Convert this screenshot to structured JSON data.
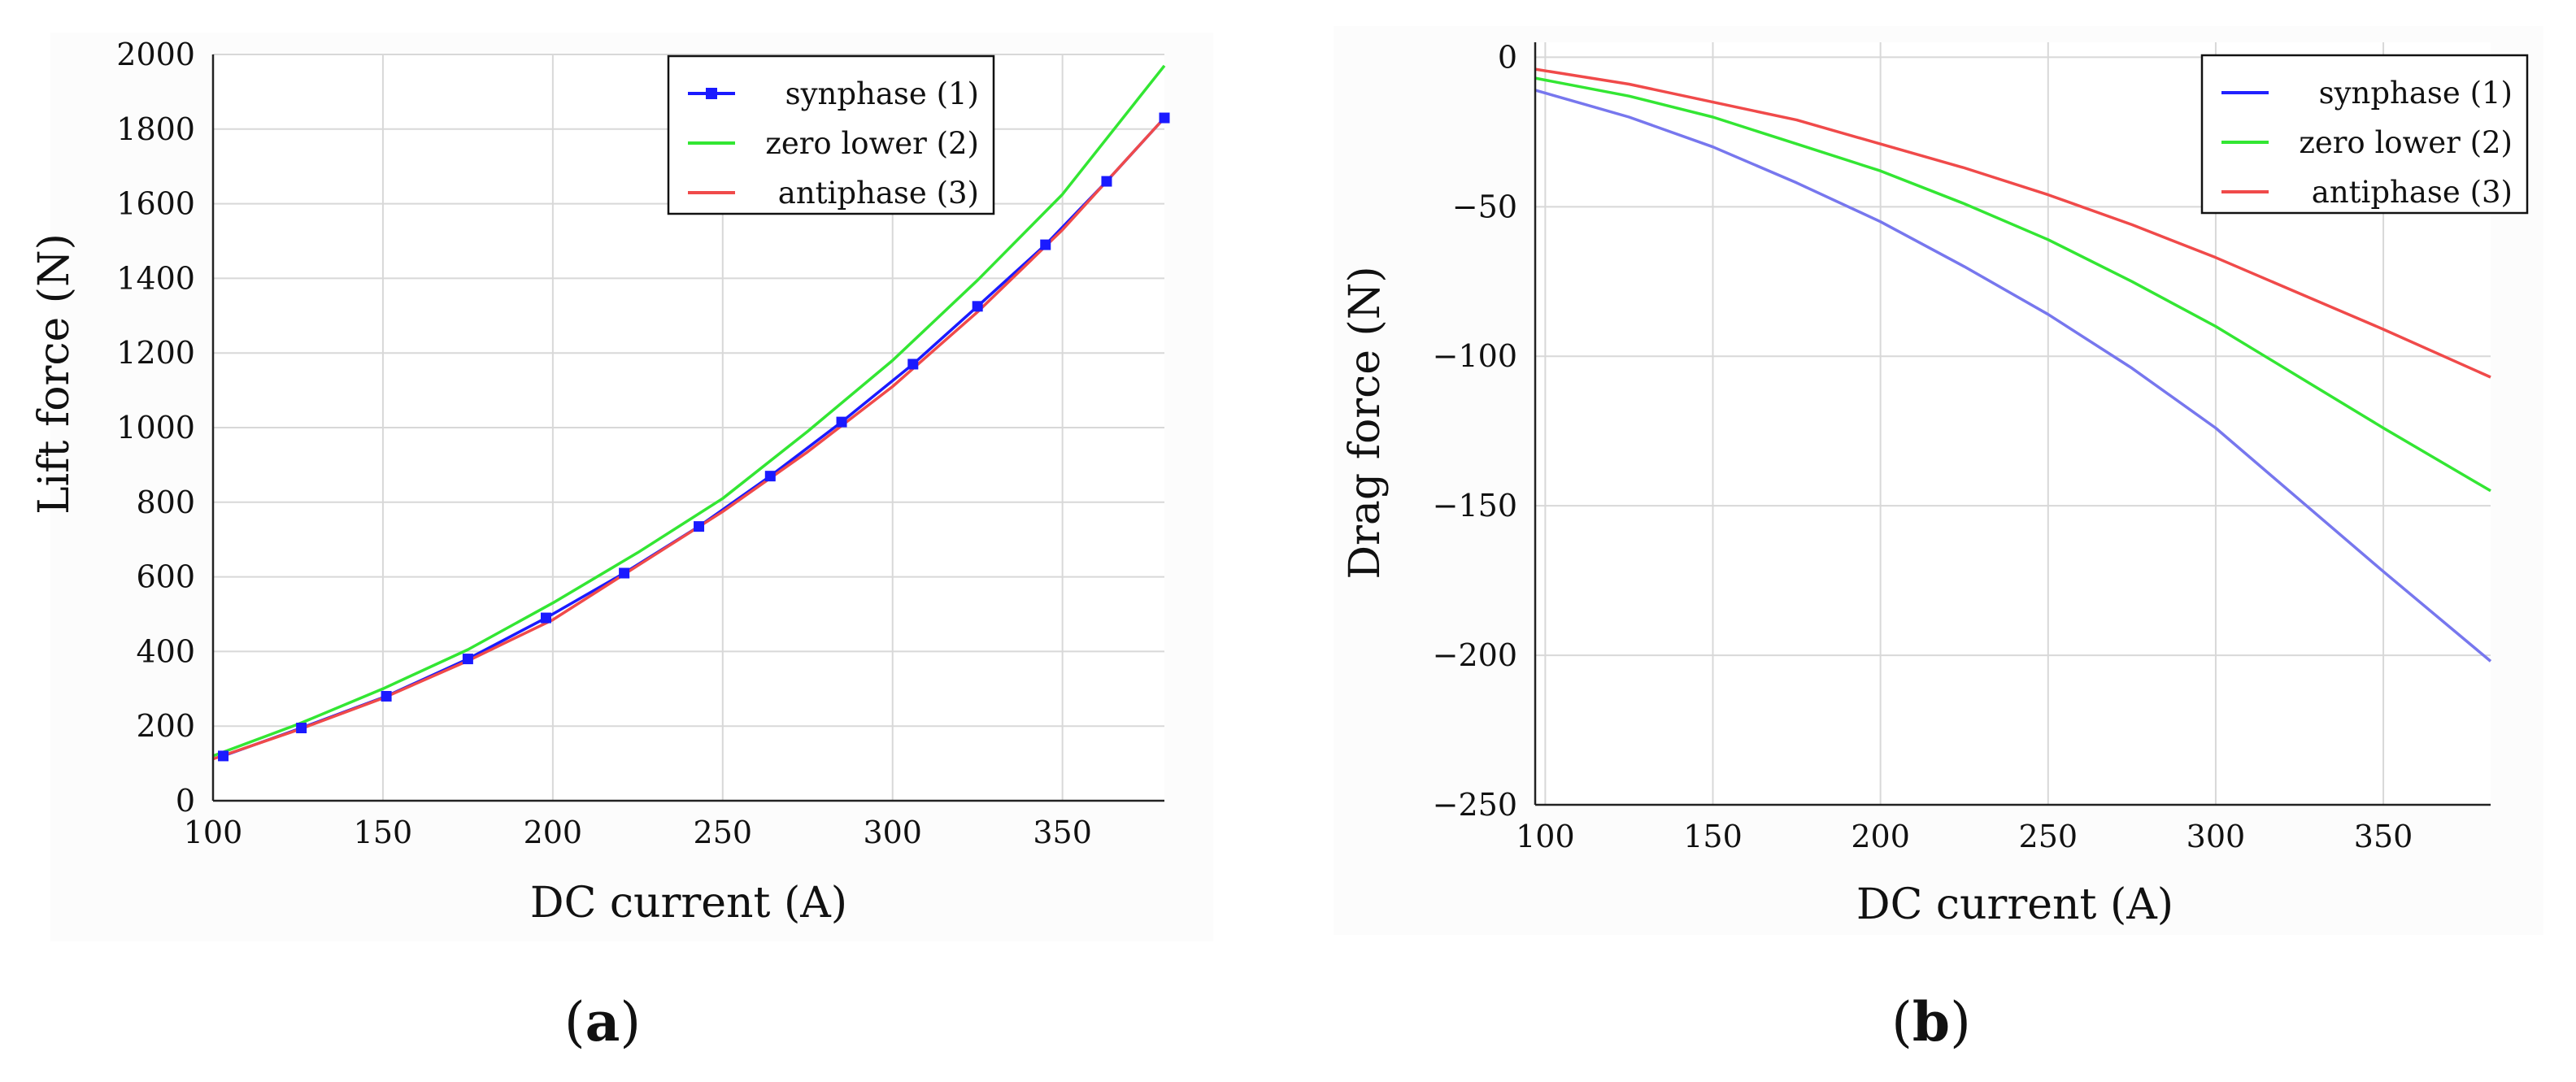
{
  "chart_data": [
    {
      "type": "line",
      "panel": "a",
      "panel_label_letter": "a",
      "xlabel": "DC current (A)",
      "ylabel": "Lift force (N)",
      "xlim": [
        100,
        380
      ],
      "ylim": [
        0,
        2000
      ],
      "xticks": [
        100,
        150,
        200,
        250,
        300,
        350
      ],
      "yticks": [
        0,
        200,
        400,
        600,
        800,
        1000,
        1200,
        1400,
        1600,
        1800,
        2000
      ],
      "grid": true,
      "legend_position": "top-right",
      "series": [
        {
          "name": "synphase (1)",
          "color": "#1a1aff",
          "marker": "square",
          "x": [
            103,
            126,
            151,
            175,
            198,
            221,
            243,
            264,
            285,
            306,
            325,
            345,
            363,
            380
          ],
          "y": [
            120,
            195,
            280,
            380,
            490,
            610,
            735,
            870,
            1015,
            1170,
            1325,
            1490,
            1660,
            1830
          ]
        },
        {
          "name": "zero lower (2)",
          "color": "#33e633",
          "marker": "none",
          "x": [
            100,
            125,
            150,
            175,
            200,
            225,
            250,
            275,
            300,
            325,
            350,
            380
          ],
          "y": [
            120,
            205,
            300,
            405,
            530,
            665,
            810,
            990,
            1180,
            1395,
            1625,
            1970
          ]
        },
        {
          "name": "antiphase (3)",
          "color": "#f04a4a",
          "marker": "none",
          "x": [
            100,
            125,
            150,
            175,
            200,
            225,
            250,
            275,
            300,
            325,
            350,
            380
          ],
          "y": [
            112,
            190,
            275,
            375,
            485,
            630,
            775,
            935,
            1110,
            1310,
            1530,
            1830
          ]
        }
      ]
    },
    {
      "type": "line",
      "panel": "b",
      "panel_label_letter": "b",
      "xlabel": "DC current (A)",
      "ylabel": "Drag force (N)",
      "xlim": [
        97,
        382
      ],
      "ylim": [
        -250,
        5
      ],
      "xticks": [
        100,
        150,
        200,
        250,
        300,
        350
      ],
      "yticks": [
        0,
        -50,
        -100,
        -150,
        -200,
        -250
      ],
      "ytick_labels": [
        "0",
        "−50",
        "−100",
        "−150",
        "−200",
        "−250"
      ],
      "grid": true,
      "legend_position": "top-right",
      "series": [
        {
          "name": "synphase (1)",
          "color": "#7777ee",
          "legend_color": "#2222ff",
          "x": [
            97,
            125,
            150,
            175,
            200,
            225,
            250,
            275,
            300,
            325,
            350,
            382
          ],
          "y": [
            -11,
            -20,
            -30,
            -42,
            -55,
            -70,
            -86,
            -104,
            -124,
            -148,
            -172,
            -202
          ]
        },
        {
          "name": "zero lower (2)",
          "color": "#33e633",
          "x": [
            97,
            125,
            150,
            175,
            200,
            225,
            250,
            275,
            300,
            325,
            350,
            382
          ],
          "y": [
            -7,
            -13,
            -20,
            -29,
            -38,
            -49,
            -61,
            -75,
            -90,
            -107,
            -124,
            -145
          ]
        },
        {
          "name": "antiphase (3)",
          "color": "#f04a4a",
          "x": [
            97,
            125,
            150,
            175,
            200,
            225,
            250,
            275,
            300,
            325,
            350,
            382
          ],
          "y": [
            -4,
            -9,
            -15,
            -21,
            -29,
            -37,
            -46,
            -56,
            -67,
            -79,
            -91,
            -107
          ]
        }
      ]
    }
  ]
}
